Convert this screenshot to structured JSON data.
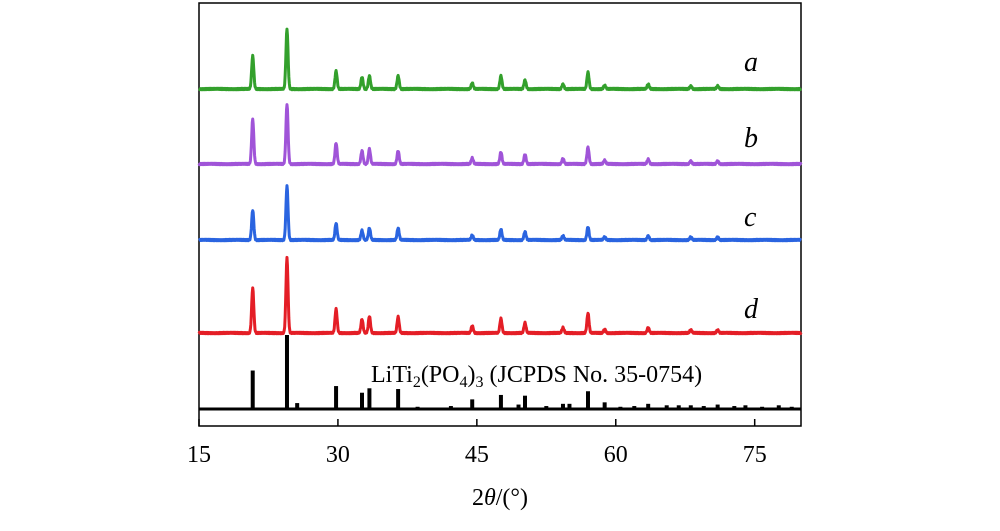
{
  "chart_data": {
    "type": "line",
    "xlabel_prefix": "2",
    "xlabel_theta": "θ",
    "xlabel_suffix": "/(°)",
    "xlim": [
      15,
      80
    ],
    "xticks": [
      15,
      30,
      45,
      60,
      75
    ],
    "grid": false,
    "peaks_2theta": [
      20.8,
      24.5,
      29.8,
      32.6,
      33.4,
      36.5,
      44.5,
      47.6,
      50.2,
      54.3,
      57.0,
      58.8,
      63.5,
      68.1,
      71.0
    ],
    "series": [
      {
        "name": "a",
        "color": "#33A02C",
        "peak_rel_intensity": [
          0.55,
          1.0,
          0.3,
          0.2,
          0.22,
          0.22,
          0.1,
          0.22,
          0.15,
          0.08,
          0.28,
          0.06,
          0.08,
          0.05,
          0.05
        ]
      },
      {
        "name": "b",
        "color": "#A054D8",
        "peak_rel_intensity": [
          0.75,
          1.0,
          0.35,
          0.22,
          0.25,
          0.22,
          0.1,
          0.2,
          0.16,
          0.09,
          0.28,
          0.06,
          0.08,
          0.05,
          0.05
        ]
      },
      {
        "name": "c",
        "color": "#2A64E0",
        "peak_rel_intensity": [
          0.5,
          0.9,
          0.28,
          0.16,
          0.2,
          0.2,
          0.08,
          0.18,
          0.14,
          0.07,
          0.22,
          0.05,
          0.07,
          0.05,
          0.05
        ]
      },
      {
        "name": "d",
        "color": "#E41E26",
        "peak_rel_intensity": [
          0.75,
          1.25,
          0.4,
          0.23,
          0.28,
          0.27,
          0.12,
          0.24,
          0.17,
          0.09,
          0.33,
          0.06,
          0.09,
          0.05,
          0.05
        ]
      }
    ],
    "reference": {
      "label": "LiTi",
      "label_sub1": "2",
      "label_mid": "(PO",
      "label_sub2": "4",
      "label_mid2": ")",
      "label_sub3": "3",
      "label_end": " (JCPDS No. 35-0754)",
      "color": "#000000",
      "lines": [
        {
          "x": 20.8,
          "i": 0.52
        },
        {
          "x": 24.5,
          "i": 1.0
        },
        {
          "x": 25.6,
          "i": 0.08
        },
        {
          "x": 29.8,
          "i": 0.31
        },
        {
          "x": 32.6,
          "i": 0.22
        },
        {
          "x": 33.4,
          "i": 0.28
        },
        {
          "x": 36.5,
          "i": 0.27
        },
        {
          "x": 38.6,
          "i": 0.03
        },
        {
          "x": 42.2,
          "i": 0.04
        },
        {
          "x": 44.5,
          "i": 0.13
        },
        {
          "x": 47.6,
          "i": 0.19
        },
        {
          "x": 49.5,
          "i": 0.06
        },
        {
          "x": 50.2,
          "i": 0.18
        },
        {
          "x": 52.5,
          "i": 0.04
        },
        {
          "x": 54.3,
          "i": 0.07
        },
        {
          "x": 55.0,
          "i": 0.07
        },
        {
          "x": 57.0,
          "i": 0.24
        },
        {
          "x": 58.8,
          "i": 0.09
        },
        {
          "x": 60.5,
          "i": 0.03
        },
        {
          "x": 62.0,
          "i": 0.04
        },
        {
          "x": 63.5,
          "i": 0.07
        },
        {
          "x": 65.5,
          "i": 0.05
        },
        {
          "x": 66.8,
          "i": 0.05
        },
        {
          "x": 68.1,
          "i": 0.05
        },
        {
          "x": 69.5,
          "i": 0.04
        },
        {
          "x": 71.0,
          "i": 0.06
        },
        {
          "x": 72.8,
          "i": 0.04
        },
        {
          "x": 74.0,
          "i": 0.05
        },
        {
          "x": 75.8,
          "i": 0.03
        },
        {
          "x": 77.6,
          "i": 0.05
        },
        {
          "x": 79.0,
          "i": 0.03
        }
      ]
    }
  }
}
